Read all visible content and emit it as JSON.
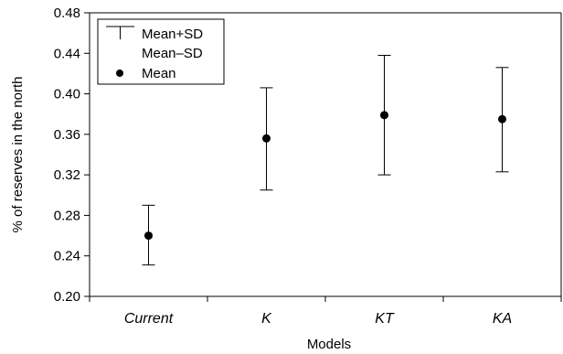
{
  "chart_data": {
    "type": "scatter",
    "xlabel": "Models",
    "ylabel": "% of reserves in the north",
    "ylim": [
      0.2,
      0.48
    ],
    "yticks": [
      "0.20",
      "0.24",
      "0.28",
      "0.32",
      "0.36",
      "0.40",
      "0.44",
      "0.48"
    ],
    "categories": [
      "Current",
      "K",
      "KT",
      "KA"
    ],
    "series": [
      {
        "name": "Mean",
        "values": [
          0.26,
          0.356,
          0.379,
          0.375
        ]
      },
      {
        "name": "Mean+SD",
        "values": [
          0.29,
          0.406,
          0.438,
          0.426
        ]
      },
      {
        "name": "Mean–SD",
        "values": [
          0.231,
          0.305,
          0.32,
          0.323
        ]
      }
    ],
    "legend": {
      "position": "top-left",
      "entries": [
        "Mean+SD",
        "Mean–SD",
        "Mean"
      ]
    },
    "grid": false
  }
}
